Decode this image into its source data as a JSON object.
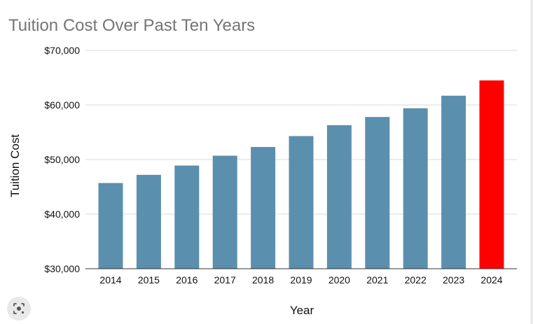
{
  "chart_data": {
    "type": "bar",
    "title": "Tuition Cost Over Past Ten Years",
    "xlabel": "Year",
    "ylabel": "Tuition Cost",
    "categories": [
      "2014",
      "2015",
      "2016",
      "2017",
      "2018",
      "2019",
      "2020",
      "2021",
      "2022",
      "2023",
      "2024"
    ],
    "values": [
      45700,
      47200,
      48900,
      50700,
      52300,
      54300,
      56300,
      57800,
      59400,
      61700,
      64500
    ],
    "ylim": [
      30000,
      70000
    ],
    "yticks": [
      30000,
      40000,
      50000,
      60000,
      70000
    ],
    "ytick_labels": [
      "$30,000",
      "$40,000",
      "$50,000",
      "$60,000",
      "$70,000"
    ],
    "grid": true,
    "legend": "none",
    "colors": {
      "default_bar": "#5b8fae",
      "highlight_bar": "#ff0000",
      "highlight_category": "2024",
      "gridline": "#d9d9d9",
      "title": "#757575"
    }
  },
  "overlay": {
    "lens_icon": "camera-search-icon"
  }
}
